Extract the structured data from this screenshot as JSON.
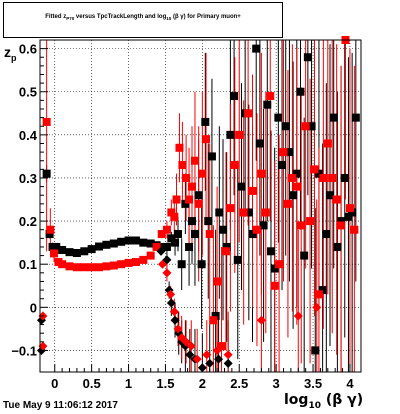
{
  "title": {
    "prefix": "Fitted",
    "z_sub": "P70",
    "middle": "versus TpcTrackLength and log",
    "log_sub": "10",
    "suffix": "(β γ) for Primary muon+"
  },
  "ylabel": {
    "text": "z",
    "sub": "p"
  },
  "xlabel": {
    "text": "log",
    "sub": "10",
    "suffix": "(β γ)"
  },
  "datestamp": "Tue May  9 11:06:12 2017",
  "chart_data": {
    "type": "scatter",
    "xlim": [
      -0.2,
      4.15
    ],
    "ylim": [
      -0.15,
      0.62
    ],
    "grid": true,
    "x_ticks": [
      {
        "v": 0,
        "label": "0"
      },
      {
        "v": 0.5,
        "label": "0.5"
      },
      {
        "v": 1,
        "label": "1"
      },
      {
        "v": 1.5,
        "label": "1.5"
      },
      {
        "v": 2,
        "label": "2"
      },
      {
        "v": 2.5,
        "label": "2.5"
      },
      {
        "v": 3,
        "label": "3"
      },
      {
        "v": 3.5,
        "label": "3.5"
      },
      {
        "v": 4,
        "label": "4"
      }
    ],
    "y_ticks": [
      {
        "v": -0.1,
        "label": "−0.1"
      },
      {
        "v": 0,
        "label": "0"
      },
      {
        "v": 0.1,
        "label": "0.1"
      },
      {
        "v": 0.2,
        "label": "0.2"
      },
      {
        "v": 0.3,
        "label": "0.3"
      },
      {
        "v": 0.4,
        "label": "0.4"
      },
      {
        "v": 0.5,
        "label": "0.5"
      },
      {
        "v": 0.6,
        "label": "0.6"
      }
    ],
    "series": [
      {
        "color": "#000000",
        "marker": "square",
        "points": [
          [
            -0.11,
            0.31,
            0.02
          ],
          [
            -0.07,
            0.17,
            0.01
          ],
          [
            -0.03,
            0.14,
            0.01
          ],
          [
            0.02,
            0.14,
            0.005
          ],
          [
            0.1,
            0.133,
            0.004
          ],
          [
            0.2,
            0.128,
            0.004
          ],
          [
            0.3,
            0.126,
            0.004
          ],
          [
            0.4,
            0.13,
            0.004
          ],
          [
            0.5,
            0.135,
            0.004
          ],
          [
            0.6,
            0.141,
            0.004
          ],
          [
            0.7,
            0.145,
            0.004
          ],
          [
            0.8,
            0.148,
            0.004
          ],
          [
            0.9,
            0.152,
            0.004
          ],
          [
            1.0,
            0.155,
            0.004
          ],
          [
            1.1,
            0.155,
            0.005
          ],
          [
            1.2,
            0.15,
            0.005
          ],
          [
            1.3,
            0.148,
            0.006
          ],
          [
            1.38,
            0.144,
            0.007
          ],
          [
            1.45,
            0.14,
            0.008
          ],
          [
            1.52,
            0.14,
            0.01
          ],
          [
            1.58,
            0.16,
            0.015
          ],
          [
            1.63,
            0.15,
            0.03
          ],
          [
            1.67,
            0.17,
            0.04
          ],
          [
            1.72,
            0.1,
            0.06
          ],
          [
            1.77,
            0.24,
            0.07
          ],
          [
            1.82,
            0.14,
            0.09
          ],
          [
            1.86,
            0.2,
            0.1
          ],
          [
            1.9,
            0.17,
            0.12
          ],
          [
            1.95,
            0.26,
            0.13
          ],
          [
            1.99,
            0.1,
            0.15
          ],
          [
            2.04,
            0.43,
            0.16
          ],
          [
            2.08,
            0.2,
            0.18
          ],
          [
            2.13,
            0.35,
            0.18
          ],
          [
            2.18,
            -0.02,
            0.2
          ],
          [
            2.23,
            0.22,
            0.2
          ],
          [
            2.28,
            0.18,
            0.21
          ],
          [
            2.33,
            0.14,
            0.22
          ],
          [
            2.38,
            0.4,
            0.22
          ],
          [
            2.43,
            0.49,
            0.23
          ],
          [
            2.48,
            0.11,
            0.23
          ],
          [
            2.53,
            0.28,
            0.24
          ],
          [
            2.58,
            0.45,
            0.24
          ],
          [
            2.63,
            0.22,
            0.25
          ],
          [
            2.68,
            0.17,
            0.25
          ],
          [
            2.73,
            0.6,
            0.26
          ],
          [
            2.78,
            0.38,
            0.26
          ],
          [
            2.83,
            0.19,
            0.27
          ],
          [
            2.88,
            0.47,
            0.27
          ],
          [
            2.93,
            0.13,
            0.28
          ],
          [
            2.98,
            0.09,
            0.28
          ],
          [
            3.03,
            0.44,
            0.29
          ],
          [
            3.08,
            0.33,
            0.29
          ],
          [
            3.13,
            0.42,
            0.3
          ],
          [
            3.18,
            0.36,
            0.3
          ],
          [
            3.23,
            0.26,
            0.31
          ],
          [
            3.28,
            0.31,
            0.31
          ],
          [
            3.33,
            0.5,
            0.32
          ],
          [
            3.38,
            0.12,
            0.32
          ],
          [
            3.43,
            0.58,
            0.32
          ],
          [
            3.48,
            0.42,
            0.33
          ],
          [
            3.53,
            -0.1,
            0.33
          ],
          [
            3.58,
            0.31,
            0.34
          ],
          [
            3.63,
            0.04,
            0.34
          ],
          [
            3.68,
            0.17,
            0.35
          ],
          [
            3.73,
            0.26,
            0.35
          ],
          [
            3.78,
            0.44,
            0.35
          ],
          [
            3.83,
            0.14,
            0.36
          ],
          [
            3.88,
            0.2,
            0.36
          ],
          [
            3.93,
            0.3,
            0.37
          ],
          [
            3.98,
            0.21,
            0.37
          ],
          [
            4.03,
            0.22,
            0.37
          ],
          [
            4.08,
            0.44,
            0.38
          ]
        ]
      },
      {
        "color": "#ff0000",
        "marker": "square",
        "points": [
          [
            -0.11,
            0.43,
            0.3
          ],
          [
            -0.06,
            0.18,
            0.05
          ],
          [
            -0.01,
            0.125,
            0.02
          ],
          [
            0.05,
            0.105,
            0.008
          ],
          [
            0.1,
            0.1,
            0.005
          ],
          [
            0.2,
            0.095,
            0.004
          ],
          [
            0.3,
            0.093,
            0.004
          ],
          [
            0.4,
            0.093,
            0.004
          ],
          [
            0.5,
            0.093,
            0.004
          ],
          [
            0.6,
            0.093,
            0.004
          ],
          [
            0.7,
            0.095,
            0.004
          ],
          [
            0.8,
            0.097,
            0.004
          ],
          [
            0.9,
            0.1,
            0.004
          ],
          [
            1.0,
            0.103,
            0.004
          ],
          [
            1.1,
            0.105,
            0.004
          ],
          [
            1.2,
            0.11,
            0.004
          ],
          [
            1.3,
            0.12,
            0.005
          ],
          [
            1.38,
            0.14,
            0.006
          ],
          [
            1.45,
            0.17,
            0.01
          ],
          [
            1.52,
            0.18,
            0.02
          ],
          [
            1.58,
            0.22,
            0.03
          ],
          [
            1.62,
            0.21,
            0.05
          ],
          [
            1.65,
            0.25,
            0.06
          ],
          [
            1.69,
            0.37,
            0.08
          ],
          [
            1.73,
            0.33,
            0.1
          ],
          [
            1.78,
            0.3,
            0.1
          ],
          [
            1.82,
            0.25,
            0.12
          ],
          [
            1.86,
            0.28,
            0.14
          ],
          [
            1.9,
            0.34,
            0.16
          ],
          [
            1.95,
            0.24,
            0.18
          ],
          [
            2.0,
            0.31,
            0.19
          ],
          [
            2.05,
            0.39,
            0.2
          ],
          [
            2.1,
            0.17,
            0.21
          ],
          [
            2.15,
            -0.03,
            0.22
          ],
          [
            2.2,
            0.06,
            0.22
          ],
          [
            2.26,
            -0.09,
            0.23
          ],
          [
            2.32,
            0.13,
            0.23
          ],
          [
            2.38,
            0.23,
            0.24
          ],
          [
            2.44,
            0.33,
            0.25
          ],
          [
            2.5,
            0.4,
            0.25
          ],
          [
            2.56,
            0.22,
            0.26
          ],
          [
            2.62,
            0.45,
            0.26
          ],
          [
            2.68,
            0.27,
            0.27
          ],
          [
            2.74,
            0.18,
            0.27
          ],
          [
            2.8,
            0.31,
            0.28
          ],
          [
            2.86,
            0.22,
            0.28
          ],
          [
            2.92,
            0.49,
            0.29
          ],
          [
            2.98,
            0.05,
            0.29
          ],
          [
            3.04,
            0.1,
            0.3
          ],
          [
            3.1,
            0.36,
            0.3
          ],
          [
            3.16,
            0.24,
            0.31
          ],
          [
            3.22,
            0.3,
            0.31
          ],
          [
            3.28,
            0.28,
            0.32
          ],
          [
            3.34,
            0.19,
            0.32
          ],
          [
            3.4,
            0.42,
            0.33
          ],
          [
            3.46,
            0.2,
            0.33
          ],
          [
            3.52,
            0.32,
            0.34
          ],
          [
            3.58,
            0.03,
            0.34
          ],
          [
            3.64,
            0.3,
            0.35
          ],
          [
            3.7,
            0.38,
            0.35
          ],
          [
            3.76,
            0.3,
            0.36
          ],
          [
            3.82,
            0.25,
            0.36
          ],
          [
            3.88,
            0.19,
            0.37
          ],
          [
            3.94,
            0.62,
            0.37
          ],
          [
            4.0,
            0.23,
            0.37
          ],
          [
            4.06,
            0.18,
            0.38
          ]
        ]
      },
      {
        "color": "#000000",
        "marker": "diamond",
        "points": [
          [
            1.44,
            0.13,
            0.01
          ],
          [
            1.52,
            0.11,
            0.02
          ],
          [
            1.55,
            0.04,
            0.02
          ],
          [
            1.58,
            0.01,
            0.03
          ],
          [
            1.63,
            -0.03,
            0.04
          ],
          [
            1.68,
            -0.06,
            0.05
          ],
          [
            1.72,
            -0.08,
            0.05
          ],
          [
            1.77,
            -0.09,
            0.06
          ],
          [
            1.83,
            -0.11,
            0.06
          ],
          [
            1.9,
            -0.12,
            0.07
          ],
          [
            2.0,
            -0.14,
            0.08
          ],
          [
            2.1,
            -0.13,
            0.09
          ],
          [
            2.22,
            -0.12,
            0.1
          ],
          [
            2.35,
            -0.13,
            0.1
          ]
        ]
      },
      {
        "color": "#ff0000",
        "marker": "diamond",
        "points": [
          [
            1.46,
            0.1,
            0.01
          ],
          [
            1.52,
            0.08,
            0.02
          ],
          [
            1.57,
            0.03,
            0.02
          ],
          [
            1.62,
            -0.01,
            0.03
          ],
          [
            1.67,
            -0.05,
            0.04
          ],
          [
            1.72,
            -0.07,
            0.05
          ],
          [
            1.78,
            -0.08,
            0.05
          ],
          [
            1.85,
            -0.09,
            0.06
          ],
          [
            1.93,
            -0.12,
            0.07
          ],
          [
            2.06,
            -0.11,
            0.08
          ],
          [
            2.2,
            -0.1,
            0.09
          ],
          [
            2.35,
            -0.11,
            0.1
          ],
          [
            2.8,
            -0.03,
            0.2
          ],
          [
            3.3,
            -0.02,
            0.2
          ],
          [
            3.55,
            0.0,
            0.25
          ]
        ]
      },
      {
        "color": "#000000",
        "marker": "diamond",
        "points": [
          [
            -0.18,
            -0.03,
            0.01
          ],
          [
            -0.18,
            -0.1,
            0.01
          ]
        ]
      },
      {
        "color": "#ff0000",
        "marker": "diamond",
        "points": [
          [
            -0.16,
            -0.02,
            0.01
          ],
          [
            -0.16,
            -0.09,
            0.01
          ]
        ]
      }
    ]
  }
}
